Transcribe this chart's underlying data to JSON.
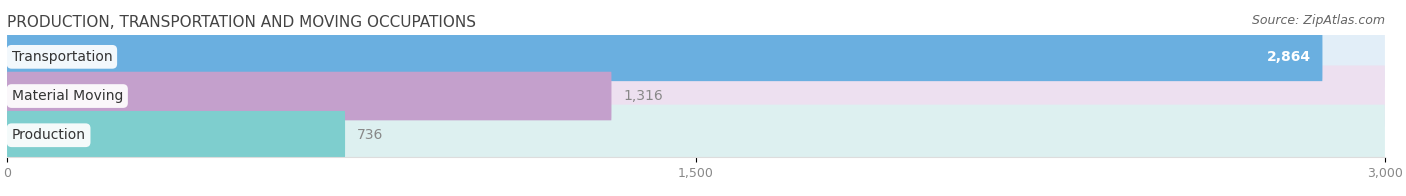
{
  "title": "PRODUCTION, TRANSPORTATION AND MOVING OCCUPATIONS",
  "source": "Source: ZipAtlas.com",
  "categories": [
    "Transportation",
    "Material Moving",
    "Production"
  ],
  "values": [
    2864,
    1316,
    736
  ],
  "bar_colors": [
    "#6aafe0",
    "#c4a0cc",
    "#7ecece"
  ],
  "bar_bg_colors": [
    "#e2eef8",
    "#ede0f0",
    "#ddf0f0"
  ],
  "xlim": [
    0,
    3000
  ],
  "xticks": [
    0,
    1500,
    3000
  ],
  "xtick_labels": [
    "0",
    "1,500",
    "3,000"
  ],
  "value_label_color_inside": "white",
  "value_label_color_outside": "#888888",
  "title_fontsize": 11,
  "source_fontsize": 9,
  "label_fontsize": 10,
  "tick_fontsize": 9,
  "background_color": "#ffffff"
}
